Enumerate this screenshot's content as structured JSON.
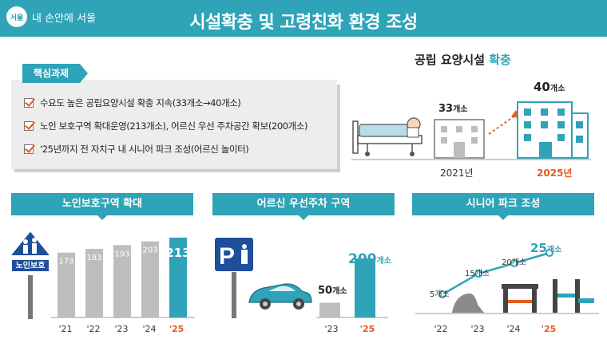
{
  "header": {
    "logo_badge": "서울",
    "logo_text": "내 손안에 서울",
    "title": "시설확충 및 고령친화 환경 조성"
  },
  "key_tasks": {
    "label": "핵심과제",
    "items": [
      "수요도 높은 공립요양시설 확충 지속(33개소→40개소)",
      "노인 보호구역 확대운영(213개소), 어르신 우선 주차공간 확보(200개소)",
      "'25년까지 전 자치구 내 시니어 파크 조성(어르신 놀이터)"
    ]
  },
  "nursing": {
    "title_main": "공립 요양시설 ",
    "title_highlight": "확충",
    "before_num": "33",
    "after_num": "40",
    "unit": "개소",
    "before_year": "2021년",
    "after_year": "2025년"
  },
  "sections": {
    "protection": {
      "tab": "노인보호구역 확대",
      "sign_text": "노인보호",
      "years": [
        "'21",
        "'22",
        "'23",
        "'24",
        "'25"
      ],
      "values": [
        173,
        183,
        193,
        203,
        213
      ]
    },
    "parking": {
      "tab": "어르신 우선주차 구역",
      "years": [
        "'23",
        "'25"
      ],
      "values": [
        50,
        200
      ],
      "unit": "개소",
      "sign_letter": "P"
    },
    "senior_park": {
      "tab": "시니어 파크 조성",
      "years": [
        "'22",
        "'23",
        "'24",
        "'25"
      ],
      "values": [
        5,
        15,
        20,
        25
      ],
      "unit": "개소"
    }
  },
  "colors": {
    "teal": "#2fa3b8",
    "orange": "#e65b1f",
    "gray_bar": "#bdbdbd",
    "sign_blue": "#1f4e9c"
  },
  "chart_data": [
    {
      "type": "bar",
      "title": "노인보호구역 확대",
      "categories": [
        "'21",
        "'22",
        "'23",
        "'24",
        "'25"
      ],
      "values": [
        173,
        183,
        193,
        203,
        213
      ]
    },
    {
      "type": "bar",
      "title": "어르신 우선주차 구역",
      "categories": [
        "'23",
        "'25"
      ],
      "values": [
        50,
        200
      ]
    },
    {
      "type": "line",
      "title": "시니어 파크 조성",
      "x": [
        "'22",
        "'23",
        "'24",
        "'25"
      ],
      "values": [
        5,
        15,
        20,
        25
      ]
    }
  ]
}
